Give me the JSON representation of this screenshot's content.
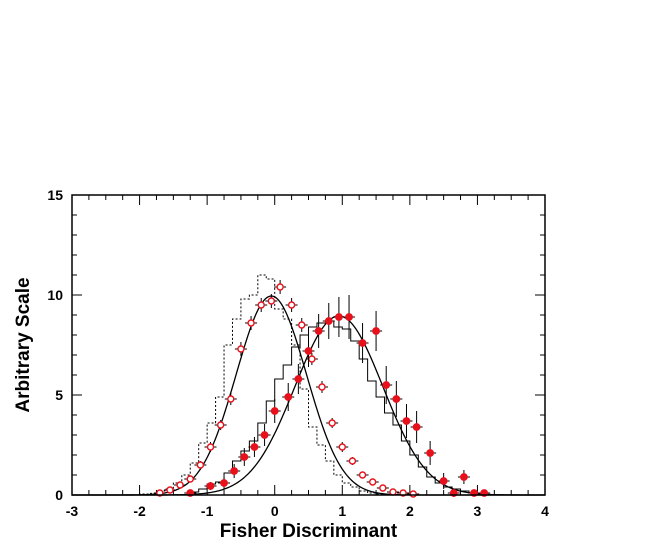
{
  "chart_data": {
    "type": "line",
    "title": "",
    "xlabel": "Fisher  Discriminant",
    "ylabel": "Arbitrary Scale",
    "xlim": [
      -3,
      4
    ],
    "ylim": [
      0,
      15
    ],
    "x_ticks": [
      "-3",
      "-2",
      "-1",
      "0",
      "1",
      "2",
      "3",
      "4"
    ],
    "y_ticks": [
      "0",
      "5",
      "10",
      "15"
    ],
    "grid": false,
    "legend": "none",
    "colors": {
      "frame": "#000000",
      "points": "#e8101a"
    },
    "series": [
      {
        "kind": "histogram",
        "style": "dotted",
        "bin_width": 0.125,
        "x_start": -2.0,
        "values": [
          0.05,
          0.08,
          0.2,
          0.3,
          0.6,
          1.0,
          1.6,
          2.6,
          3.6,
          4.9,
          7.5,
          8.8,
          9.8,
          10.0,
          11.0,
          10.8,
          9.3,
          8.8,
          7.5,
          5.3,
          3.4,
          2.5,
          1.7,
          1.0,
          0.6,
          0.4,
          0.2,
          0.1,
          0.05
        ]
      },
      {
        "kind": "histogram",
        "style": "solid",
        "bin_width": 0.125,
        "x_start": -1.25,
        "values": [
          0.15,
          0.3,
          0.55,
          0.65,
          1.1,
          1.7,
          2.2,
          2.7,
          3.6,
          4.7,
          5.8,
          6.5,
          7.4,
          8.0,
          8.4,
          8.6,
          8.7,
          8.4,
          8.3,
          7.7,
          6.8,
          5.7,
          4.9,
          4.1,
          3.5,
          2.7,
          2.0,
          1.4,
          0.9,
          0.6,
          0.4,
          0.3,
          0.2,
          0.1
        ]
      },
      {
        "kind": "gaussian",
        "style": "solid",
        "mean": -0.05,
        "sigma": 0.52,
        "amplitude": 9.95
      },
      {
        "kind": "gaussian",
        "style": "solid",
        "mean": 0.95,
        "sigma": 0.65,
        "amplitude": 8.95
      },
      {
        "kind": "points",
        "marker": "open-circle",
        "x": [
          -1.7,
          -1.55,
          -1.4,
          -1.25,
          -1.1,
          -0.95,
          -0.8,
          -0.65,
          -0.5,
          -0.35,
          -0.2,
          -0.05,
          0.08,
          0.25,
          0.4,
          0.55,
          0.7,
          0.85,
          1.0,
          1.15,
          1.3,
          1.45,
          1.6,
          1.75,
          1.9,
          2.05
        ],
        "y": [
          0.1,
          0.25,
          0.5,
          0.8,
          1.5,
          2.4,
          3.5,
          4.8,
          7.3,
          8.6,
          9.5,
          9.7,
          10.4,
          9.5,
          8.5,
          6.8,
          5.4,
          3.6,
          2.4,
          1.7,
          1.0,
          0.65,
          0.35,
          0.15,
          0.1,
          0.05
        ],
        "err": [
          0.1,
          0.1,
          0.15,
          0.15,
          0.2,
          0.25,
          0.25,
          0.3,
          0.35,
          0.35,
          0.35,
          0.35,
          0.35,
          0.35,
          0.35,
          0.3,
          0.3,
          0.25,
          0.25,
          0.2,
          0.15,
          0.15,
          0.1,
          0.1,
          0.1,
          0.1
        ]
      },
      {
        "kind": "points",
        "marker": "filled-circle",
        "x": [
          -1.25,
          -0.95,
          -0.75,
          -0.6,
          -0.45,
          -0.3,
          -0.15,
          0.0,
          0.2,
          0.35,
          0.5,
          0.65,
          0.8,
          0.95,
          1.1,
          1.3,
          1.5,
          1.65,
          1.8,
          1.95,
          2.1,
          2.3,
          2.5,
          2.65,
          2.8,
          2.95,
          3.1
        ],
        "y": [
          0.1,
          0.45,
          0.6,
          1.2,
          1.9,
          2.4,
          3.0,
          4.2,
          4.9,
          5.8,
          7.2,
          8.2,
          8.7,
          8.9,
          8.9,
          7.6,
          8.2,
          5.5,
          4.8,
          3.7,
          3.4,
          2.1,
          0.7,
          0.1,
          0.9,
          0.1,
          0.1
        ],
        "err": [
          0.1,
          0.2,
          0.3,
          0.35,
          0.45,
          0.5,
          0.55,
          0.6,
          0.7,
          0.75,
          0.8,
          0.85,
          0.9,
          1.0,
          1.1,
          1.0,
          1.0,
          0.95,
          0.9,
          0.85,
          0.8,
          0.6,
          0.4,
          0.2,
          0.35,
          0.15,
          0.15
        ]
      }
    ]
  }
}
